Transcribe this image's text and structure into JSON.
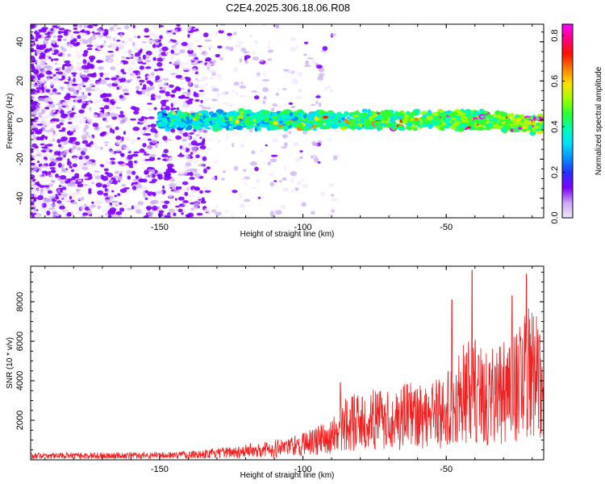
{
  "title": "C2E4.2025.306.18.06.R08",
  "colors": {
    "snr_line": "#ee2222",
    "cloud": "#7a22ee",
    "background": "#ffffff"
  },
  "chart_data": [
    {
      "type": "heatmap",
      "name": "spectrogram",
      "xlabel": "Height of straight line (km)",
      "ylabel": "Frequency (Hz)",
      "xlim": [
        -195,
        -16
      ],
      "ylim": [
        -50,
        49
      ],
      "xticks": [
        -150,
        -100,
        -50
      ],
      "yticks": [
        -40,
        -20,
        0,
        20,
        40
      ],
      "colorbar": {
        "label": "Normalized spectral amplitude",
        "range": [
          0,
          0.85
        ],
        "ticks": [
          0.0,
          0.2,
          0.4,
          0.6,
          0.8
        ],
        "colormap": [
          "#f2e6ff",
          "#c9a8f5",
          "#7f00ff",
          "#2c2cff",
          "#0090ff",
          "#00e0ff",
          "#00ffb0",
          "#30ff30",
          "#a0ff00",
          "#ffe000",
          "#ff8000",
          "#ff1000",
          "#ff0080",
          "#ff00ff"
        ]
      },
      "description_values": {
        "band_center_hz": 0,
        "band_halfwidth_hz": 5,
        "max_amplitude": 0.85,
        "noise_region_x_max": -133
      }
    },
    {
      "type": "line",
      "name": "snr",
      "xlabel": "Height of straight line (km)",
      "ylabel": "SNR (10 * v/v)",
      "xlim": [
        -195,
        -16
      ],
      "ylim": [
        0,
        9800
      ],
      "xticks": [
        -150,
        -100,
        -50
      ],
      "yticks": [
        2000,
        4000,
        6000,
        8000
      ],
      "series": [
        {
          "name": "SNR",
          "x": [
            -195,
            -180,
            -165,
            -150,
            -140,
            -130,
            -120,
            -110,
            -100,
            -90,
            -85,
            -80,
            -70,
            -60,
            -50,
            -45,
            -40,
            -35,
            -30,
            -25,
            -20,
            -16
          ],
          "y": [
            300,
            320,
            330,
            350,
            400,
            500,
            700,
            900,
            1200,
            1800,
            2800,
            3000,
            3200,
            3500,
            3800,
            5000,
            5500,
            4800,
            5200,
            6000,
            7000,
            6500
          ],
          "peaks": [
            [
              -41,
              9600
            ],
            [
              -22,
              9400
            ],
            [
              -48,
              8100
            ],
            [
              -27,
              8300
            ],
            [
              -87,
              3900
            ]
          ]
        }
      ]
    }
  ]
}
